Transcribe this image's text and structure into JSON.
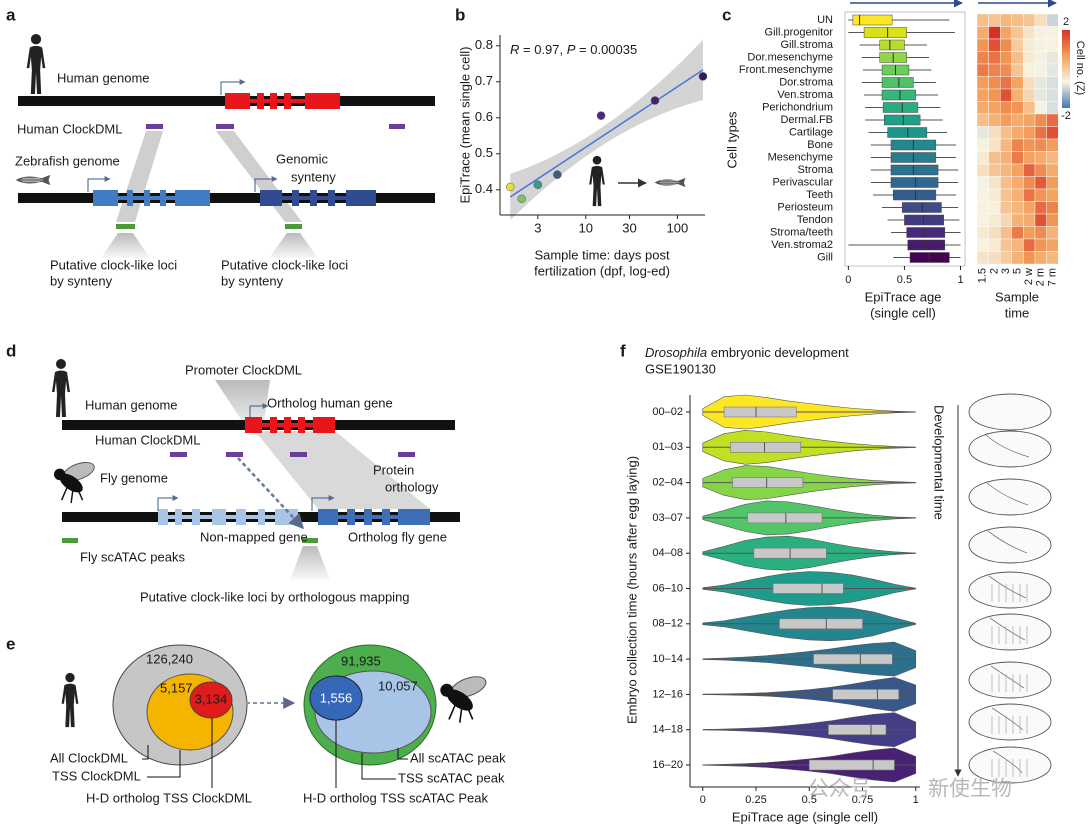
{
  "panel_labels": {
    "a": "a",
    "b": "b",
    "c": "c",
    "d": "d",
    "e": "e",
    "f": "f"
  },
  "panel_a": {
    "human_genome": "Human genome",
    "human_clockdml": "Human ClockDML",
    "zebrafish_genome": "Zebrafish genome",
    "genomic_synteny": [
      "Genomic",
      "synteny"
    ],
    "loci_left": [
      "Putative clock-like loci",
      "by synteny"
    ],
    "loci_right": [
      "Putative clock-like loci",
      "by synteny"
    ]
  },
  "panel_d": {
    "promoter_clockdml": "Promoter ClockDML",
    "human_genome": "Human genome",
    "ortholog_human_gene": "Ortholog human gene",
    "human_clockdml": "Human ClockDML",
    "fly_genome": "Fly genome",
    "protein_orthology": [
      "Protein",
      "orthology"
    ],
    "non_mapped_gene": "Non-mapped gene",
    "ortholog_fly_gene": "Ortholog fly gene",
    "fly_scatac_peaks": "Fly scATAC peaks",
    "putative_loci": "Putative clock-like loci by orthologous mapping"
  },
  "panel_e": {
    "left": {
      "all": "126,240",
      "tss": "5,157",
      "hd": "3,134",
      "labels": [
        "All ClockDML",
        "TSS ClockDML",
        "H-D ortholog TSS ClockDML"
      ]
    },
    "right": {
      "all": "91,935",
      "tss": "10,057",
      "hd": "1,556",
      "labels": [
        "All scATAC peak",
        "TSS scATAC peak",
        "H-D ortholog TSS scATAC Peak"
      ]
    }
  },
  "watermark": [
    "公众号",
    "新使生物"
  ],
  "chart_data": [
    {
      "type": "scatter",
      "annotation": [
        "R",
        " = 0.97, ",
        "P",
        " = 0.00035"
      ],
      "xlabel": [
        "Sample time: days post",
        "fertilization (dpf, log-ed)"
      ],
      "ylabel": "EpiTrace (mean single cell)",
      "x": [
        1.5,
        2,
        3,
        4.9,
        14.7,
        57,
        190
      ],
      "values": [
        0.408,
        0.375,
        0.414,
        0.442,
        0.606,
        0.648,
        0.715
      ],
      "colors": [
        "#e8df3c",
        "#7cc46a",
        "#3b9a8c",
        "#3f5a7d",
        "#4b2a7b",
        "#42226e",
        "#3a1a5e"
      ],
      "xlog": true,
      "xlim": [
        1.16,
        200
      ],
      "xticks": [
        3,
        10,
        30,
        100
      ],
      "ylim": [
        0.33,
        0.83
      ],
      "yticks": [
        0.4,
        0.5,
        0.6,
        0.7,
        0.8
      ],
      "fit": {
        "x": [
          1.5,
          190
        ],
        "y": [
          0.38,
          0.733
        ],
        "color": "#4a74d9"
      }
    },
    {
      "type": "box",
      "ylabel": "Cell types",
      "xlabel": [
        "EpiTrace age",
        "(single cell)"
      ],
      "categories": [
        "UN",
        "Gill.progenitor",
        "Gill.stroma",
        "Dor.mesenchyme",
        "Front.mesenchyme",
        "Dor.stroma",
        "Ven.stroma",
        "Perichondrium",
        "Dermal.FB",
        "Cartilage",
        "Bone",
        "Mesenchyme",
        "Stroma",
        "Perivascular",
        "Teeth",
        "Periosteum",
        "Tendon",
        "Stroma/teeth",
        "Ven.stroma2",
        "Gill"
      ],
      "boxes": [
        [
          0,
          0.04,
          0.1,
          0.39,
          0.9
        ],
        [
          0,
          0.14,
          0.35,
          0.52,
          0.95
        ],
        [
          0.1,
          0.28,
          0.37,
          0.5,
          0.7
        ],
        [
          0.12,
          0.28,
          0.4,
          0.52,
          0.72
        ],
        [
          0.13,
          0.3,
          0.42,
          0.54,
          0.74
        ],
        [
          0.12,
          0.3,
          0.45,
          0.58,
          0.78
        ],
        [
          0.14,
          0.3,
          0.46,
          0.6,
          0.8
        ],
        [
          0.15,
          0.31,
          0.48,
          0.62,
          0.82
        ],
        [
          0.15,
          0.32,
          0.49,
          0.64,
          0.84
        ],
        [
          0.18,
          0.35,
          0.53,
          0.7,
          0.88
        ],
        [
          0.2,
          0.38,
          0.58,
          0.78,
          0.96
        ],
        [
          0.2,
          0.38,
          0.58,
          0.78,
          0.96
        ],
        [
          0.2,
          0.38,
          0.58,
          0.8,
          0.98
        ],
        [
          0.2,
          0.38,
          0.6,
          0.8,
          0.98
        ],
        [
          0.22,
          0.4,
          0.6,
          0.78,
          0.96
        ],
        [
          0.3,
          0.48,
          0.66,
          0.83,
          0.98
        ],
        [
          0.35,
          0.5,
          0.67,
          0.85,
          0.99
        ],
        [
          0.38,
          0.52,
          0.68,
          0.86,
          1
        ],
        [
          0,
          0.53,
          0.7,
          0.86,
          1
        ],
        [
          0.4,
          0.55,
          0.72,
          0.9,
          1
        ]
      ],
      "colors": [
        "#fde725",
        "#d8e219",
        "#b5de2b",
        "#8fd744",
        "#6ccd5a",
        "#4fc16b",
        "#35b779",
        "#26ad81",
        "#1fa188",
        "#1f958b",
        "#23898e",
        "#287d8e",
        "#2c718e",
        "#31668e",
        "#365c8d",
        "#3e4a89",
        "#443a83",
        "#472a7a",
        "#481a6c",
        "#440154"
      ],
      "xlim": [
        -0.03,
        1.04
      ],
      "xticks": [
        0,
        0.5,
        1
      ]
    },
    {
      "type": "heatmap",
      "xlabel": [
        "Sample",
        "time"
      ],
      "categories": [
        "1.5",
        "2",
        "3",
        "5",
        "2 w",
        "2 m",
        "7 m"
      ],
      "values": [
        [
          0.2,
          0.1,
          0.3,
          0.2,
          0.1,
          -0.3,
          -1.0
        ],
        [
          0.5,
          2.0,
          0.6,
          0.1,
          -0.4,
          -0.6,
          -0.6
        ],
        [
          0.8,
          1.6,
          0.9,
          0.0,
          -0.5,
          -0.7,
          -0.6
        ],
        [
          1.0,
          1.2,
          0.8,
          0.2,
          -0.5,
          -0.7,
          -0.8
        ],
        [
          1.1,
          1.0,
          0.9,
          0.1,
          -0.6,
          -0.7,
          -0.8
        ],
        [
          0.7,
          0.9,
          1.2,
          0.6,
          -0.3,
          -0.8,
          -0.9
        ],
        [
          0.6,
          0.8,
          1.6,
          0.4,
          -0.2,
          -0.8,
          -0.9
        ],
        [
          0.5,
          0.6,
          0.9,
          0.8,
          0.2,
          -0.7,
          -0.9
        ],
        [
          0.2,
          0.4,
          0.7,
          0.5,
          0.6,
          0.9,
          1.3
        ],
        [
          -0.8,
          -0.3,
          0.2,
          0.5,
          0.7,
          1.2,
          1.6
        ],
        [
          -0.6,
          -0.4,
          0.3,
          1.0,
          0.8,
          0.9,
          0.7
        ],
        [
          -0.5,
          0.2,
          0.4,
          1.1,
          0.6,
          0.5,
          0.3
        ],
        [
          -0.3,
          0.1,
          0.3,
          0.6,
          1.4,
          0.9,
          0.5
        ],
        [
          -0.7,
          -0.4,
          0.2,
          0.5,
          0.9,
          1.5,
          0.7
        ],
        [
          -0.6,
          -0.5,
          0.1,
          0.4,
          1.2,
          0.8,
          0.6
        ],
        [
          -0.7,
          -0.6,
          0.1,
          0.3,
          0.6,
          1.3,
          1.0
        ],
        [
          -0.6,
          -0.5,
          -0.2,
          0.4,
          0.5,
          1.6,
          0.8
        ],
        [
          -0.5,
          -0.3,
          0.2,
          1.1,
          0.7,
          0.9,
          0.4
        ],
        [
          -0.6,
          -0.5,
          0.1,
          0.3,
          1.3,
          0.8,
          0.6
        ],
        [
          -0.4,
          -0.3,
          0.0,
          0.4,
          0.8,
          0.5,
          0.3
        ]
      ],
      "colorbar_label": "Cell no. (Z)",
      "zlim": [
        -2,
        2
      ],
      "zticks": [
        2,
        -2
      ],
      "colorscale": [
        "#4575b4",
        "#f7f5e4",
        "#f4a05a",
        "#d73027"
      ]
    },
    {
      "type": "violin",
      "title": [
        "Drosophila",
        " embryonic development"
      ],
      "subtitle": "GSE190130",
      "ylabel": "Embryo collection time (hours after egg laying)",
      "xlabel": "EpiTrace age (single cell)",
      "side_label": "Developmental time",
      "categories": [
        "00–02",
        "01–03",
        "02–04",
        "03–07",
        "04–08",
        "06–10",
        "08–12",
        "10–14",
        "12–16",
        "14–18",
        "16–20"
      ],
      "boxes": [
        [
          0,
          0.1,
          0.25,
          0.44,
          1
        ],
        [
          0,
          0.13,
          0.29,
          0.46,
          1
        ],
        [
          0,
          0.14,
          0.3,
          0.47,
          1
        ],
        [
          0,
          0.21,
          0.39,
          0.56,
          1
        ],
        [
          0,
          0.24,
          0.41,
          0.58,
          1
        ],
        [
          0,
          0.33,
          0.56,
          0.66,
          1
        ],
        [
          0,
          0.36,
          0.58,
          0.75,
          1
        ],
        [
          0,
          0.52,
          0.74,
          0.89,
          1
        ],
        [
          0,
          0.61,
          0.82,
          0.92,
          1
        ],
        [
          0,
          0.59,
          0.79,
          0.86,
          1
        ],
        [
          0,
          0.5,
          0.8,
          0.9,
          1
        ]
      ],
      "density_x": [
        0,
        0.1,
        0.2,
        0.3,
        0.4,
        0.5,
        0.6,
        0.7,
        0.8,
        0.9,
        1
      ],
      "density": [
        [
          0.2,
          0.9,
          1.0,
          0.85,
          0.65,
          0.5,
          0.35,
          0.22,
          0.12,
          0.05,
          0.01
        ],
        [
          0.25,
          0.8,
          1.0,
          0.9,
          0.7,
          0.52,
          0.36,
          0.22,
          0.12,
          0.05,
          0.01
        ],
        [
          0.25,
          0.75,
          1.0,
          0.95,
          0.75,
          0.55,
          0.38,
          0.24,
          0.13,
          0.06,
          0.01
        ],
        [
          0.1,
          0.45,
          0.8,
          1.0,
          0.95,
          0.75,
          0.52,
          0.32,
          0.16,
          0.06,
          0.01
        ],
        [
          0.08,
          0.4,
          0.75,
          0.95,
          1.0,
          0.85,
          0.6,
          0.38,
          0.2,
          0.08,
          0.01
        ],
        [
          0.05,
          0.2,
          0.45,
          0.7,
          0.9,
          1.0,
          0.95,
          0.8,
          0.55,
          0.25,
          0.02
        ],
        [
          0.05,
          0.18,
          0.4,
          0.62,
          0.82,
          0.95,
          1.0,
          0.92,
          0.7,
          0.35,
          0.03
        ],
        [
          0.02,
          0.06,
          0.12,
          0.2,
          0.32,
          0.45,
          0.6,
          0.78,
          0.92,
          1.0,
          0.5
        ],
        [
          0.01,
          0.03,
          0.06,
          0.1,
          0.18,
          0.28,
          0.42,
          0.6,
          0.82,
          1.0,
          0.55
        ],
        [
          0.01,
          0.04,
          0.08,
          0.14,
          0.24,
          0.36,
          0.52,
          0.72,
          0.9,
          1.0,
          0.45
        ],
        [
          0.01,
          0.04,
          0.08,
          0.14,
          0.24,
          0.36,
          0.5,
          0.7,
          0.88,
          1.0,
          0.5
        ]
      ],
      "colors": [
        "#fde725",
        "#c2df23",
        "#86d549",
        "#52c569",
        "#2ab07f",
        "#1e9b8a",
        "#25858e",
        "#2d708e",
        "#38588c",
        "#433e85",
        "#482173"
      ],
      "xlim": [
        -0.06,
        1.02
      ],
      "xticks": [
        0,
        0.25,
        0.5,
        0.75,
        1
      ]
    }
  ]
}
